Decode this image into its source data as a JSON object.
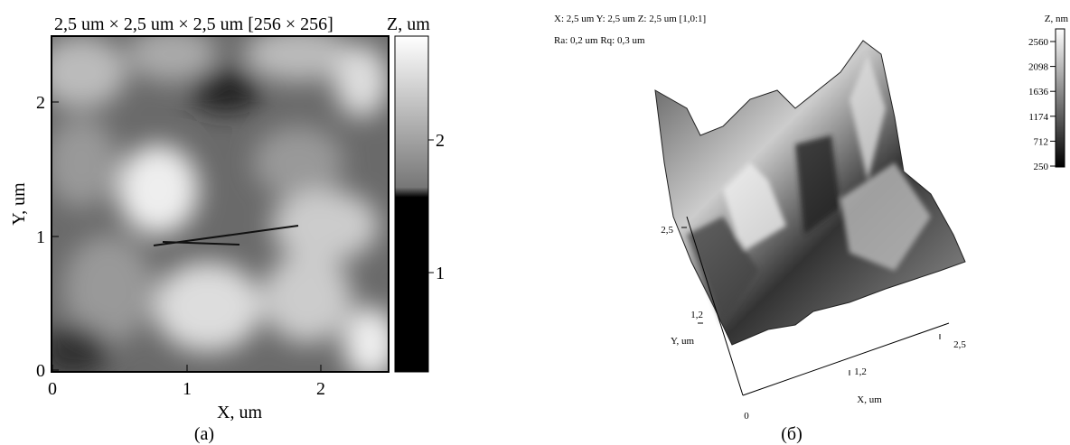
{
  "left_panel": {
    "title": "2,5 um × 2,5 um × 2,5 um [256 × 256]",
    "colorbar_label": "Z, um",
    "colorbar_ticks": [
      "2",
      "1"
    ],
    "y_ticks": [
      "2",
      "1",
      "0"
    ],
    "x_ticks": [
      "0",
      "1",
      "2"
    ],
    "y_label": "Y, um",
    "x_label": "X, um",
    "caption": "(а)"
  },
  "right_panel": {
    "info_line1": "X: 2,5 um   Y: 2,5 um  Z: 2,5 um [1,0:1]",
    "info_line2": "Ra: 0,2 um  Rq: 0,3 um",
    "colorbar_label": "Z, nm",
    "colorbar_ticks": [
      "2560",
      "2098",
      "1636",
      "1174",
      "712",
      "250"
    ],
    "y_axis_ticks": [
      "2,5",
      "1,2"
    ],
    "y_label": "Y, um",
    "origin": "0",
    "x_axis_ticks": [
      "1,2",
      "2,5"
    ],
    "x_label": "X, um",
    "caption": "(б)"
  }
}
